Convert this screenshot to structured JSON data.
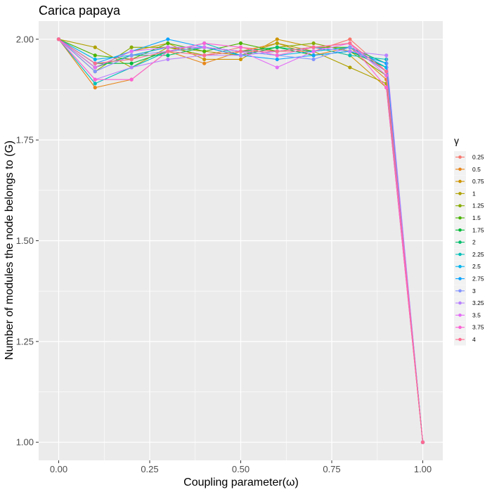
{
  "chart_data": {
    "type": "line",
    "title": "Carica papaya",
    "xlabel": "Coupling parameter(ω)",
    "ylabel": "Number of modules the node belongs to (G)",
    "xlim": [
      -0.055,
      1.055
    ],
    "ylim": [
      0.955,
      2.045
    ],
    "x_ticks": [
      0.0,
      0.25,
      0.5,
      0.75,
      1.0
    ],
    "x_tick_labels": [
      "0.00",
      "0.25",
      "0.50",
      "0.75",
      "1.00"
    ],
    "y_ticks": [
      1.0,
      1.25,
      1.5,
      1.75,
      2.0
    ],
    "y_tick_labels": [
      "1.00",
      "1.25",
      "1.50",
      "1.75",
      "2.00"
    ],
    "grid": true,
    "legend_title": "γ",
    "legend_position": "right",
    "x": [
      0.0,
      0.1,
      0.2,
      0.3,
      0.4,
      0.5,
      0.6,
      0.7,
      0.8,
      0.9,
      1.0
    ],
    "series": [
      {
        "name": "0.25",
        "color": "#F8766D",
        "values": [
          2.0,
          1.93,
          1.96,
          1.98,
          1.96,
          1.98,
          1.97,
          1.97,
          2.0,
          1.92,
          1.0
        ]
      },
      {
        "name": "0.5",
        "color": "#E7861B",
        "values": [
          2.0,
          1.88,
          1.9,
          1.97,
          1.94,
          1.97,
          1.99,
          1.96,
          1.98,
          1.9,
          1.0
        ]
      },
      {
        "name": "0.75",
        "color": "#CE9500",
        "values": [
          2.0,
          1.93,
          1.97,
          1.99,
          1.95,
          1.95,
          2.0,
          1.98,
          1.96,
          1.88,
          1.0
        ]
      },
      {
        "name": "1",
        "color": "#AFA100",
        "values": [
          2.0,
          1.98,
          1.93,
          1.98,
          1.97,
          1.96,
          1.99,
          1.97,
          1.93,
          1.89,
          1.0
        ]
      },
      {
        "name": "1.25",
        "color": "#87AC00",
        "values": [
          2.0,
          1.92,
          1.98,
          1.98,
          1.96,
          1.97,
          1.98,
          1.99,
          1.97,
          1.91,
          1.0
        ]
      },
      {
        "name": "1.5",
        "color": "#4BB400",
        "values": [
          2.0,
          1.96,
          1.95,
          1.99,
          1.97,
          1.99,
          1.97,
          1.98,
          1.98,
          1.92,
          1.0
        ]
      },
      {
        "name": "1.75",
        "color": "#00BA38",
        "values": [
          2.0,
          1.94,
          1.94,
          1.97,
          1.98,
          1.96,
          1.98,
          1.96,
          1.97,
          1.93,
          1.0
        ]
      },
      {
        "name": "2",
        "color": "#00BE6C",
        "values": [
          2.0,
          1.93,
          1.96,
          1.96,
          1.98,
          1.97,
          1.98,
          1.97,
          1.98,
          1.94,
          1.0
        ]
      },
      {
        "name": "2.25",
        "color": "#00C0B8",
        "values": [
          2.0,
          1.89,
          1.93,
          1.97,
          1.99,
          1.96,
          1.97,
          1.98,
          1.96,
          1.95,
          1.0
        ]
      },
      {
        "name": "2.5",
        "color": "#00B4EF",
        "values": [
          2.0,
          1.95,
          1.96,
          1.98,
          1.98,
          1.97,
          1.96,
          1.97,
          1.98,
          1.93,
          1.0
        ]
      },
      {
        "name": "2.75",
        "color": "#0CA4FF",
        "values": [
          2.0,
          1.94,
          1.97,
          2.0,
          1.98,
          1.96,
          1.95,
          1.96,
          1.97,
          1.94,
          1.0
        ]
      },
      {
        "name": "3",
        "color": "#8494FF",
        "values": [
          2.0,
          1.92,
          1.96,
          1.97,
          1.98,
          1.97,
          1.96,
          1.95,
          1.98,
          1.92,
          1.0
        ]
      },
      {
        "name": "3.25",
        "color": "#B983FF",
        "values": [
          2.0,
          1.9,
          1.93,
          1.95,
          1.96,
          1.96,
          1.97,
          1.98,
          1.97,
          1.96,
          1.0
        ]
      },
      {
        "name": "3.5",
        "color": "#E36EF6",
        "values": [
          2.0,
          1.93,
          1.97,
          1.98,
          1.98,
          1.97,
          1.93,
          1.97,
          1.99,
          1.91,
          1.0
        ]
      },
      {
        "name": "3.75",
        "color": "#FC61D5",
        "values": [
          2.0,
          1.9,
          1.9,
          1.97,
          1.99,
          1.98,
          1.96,
          1.98,
          1.99,
          1.88,
          1.0
        ]
      },
      {
        "name": "4",
        "color": "#FF6C91",
        "values": [
          2.0,
          1.94,
          1.95,
          1.97,
          1.96,
          1.97,
          1.97,
          1.98,
          1.99,
          1.92,
          1.0
        ]
      }
    ]
  }
}
